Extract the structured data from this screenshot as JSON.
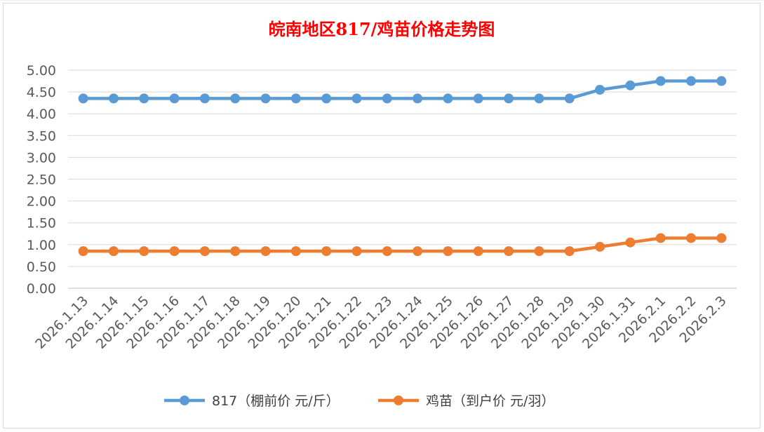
{
  "chart_data": {
    "type": "line",
    "title": "皖南地区817/鸡苗价格走势图",
    "categories": [
      "2026.1.13",
      "2026.1.14",
      "2026.1.15",
      "2026.1.16",
      "2026.1.17",
      "2026.1.18",
      "2026.1.19",
      "2026.1.20",
      "2026.1.21",
      "2026.1.22",
      "2026.1.23",
      "2026.1.24",
      "2026.1.25",
      "2026.1.26",
      "2026.1.27",
      "2026.1.28",
      "2026.1.29",
      "2026.1.30",
      "2026.1.31",
      "2026.2.1",
      "2026.2.2",
      "2026.2.3"
    ],
    "series": [
      {
        "name": "817（棚前价 元/斤）",
        "color": "#5b9bd5",
        "values": [
          4.35,
          4.35,
          4.35,
          4.35,
          4.35,
          4.35,
          4.35,
          4.35,
          4.35,
          4.35,
          4.35,
          4.35,
          4.35,
          4.35,
          4.35,
          4.35,
          4.35,
          4.55,
          4.65,
          4.75,
          4.75,
          4.75
        ]
      },
      {
        "name": "鸡苗（到户价 元/羽）",
        "color": "#ed7d31",
        "values": [
          0.85,
          0.85,
          0.85,
          0.85,
          0.85,
          0.85,
          0.85,
          0.85,
          0.85,
          0.85,
          0.85,
          0.85,
          0.85,
          0.85,
          0.85,
          0.85,
          0.85,
          0.95,
          1.05,
          1.15,
          1.15,
          1.15
        ]
      }
    ],
    "yticks": [
      "0.00",
      "0.50",
      "1.00",
      "1.50",
      "2.00",
      "2.50",
      "3.00",
      "3.50",
      "4.00",
      "4.50",
      "5.00"
    ],
    "ylim": [
      0,
      5
    ],
    "grid": true,
    "legend": "bottom"
  }
}
